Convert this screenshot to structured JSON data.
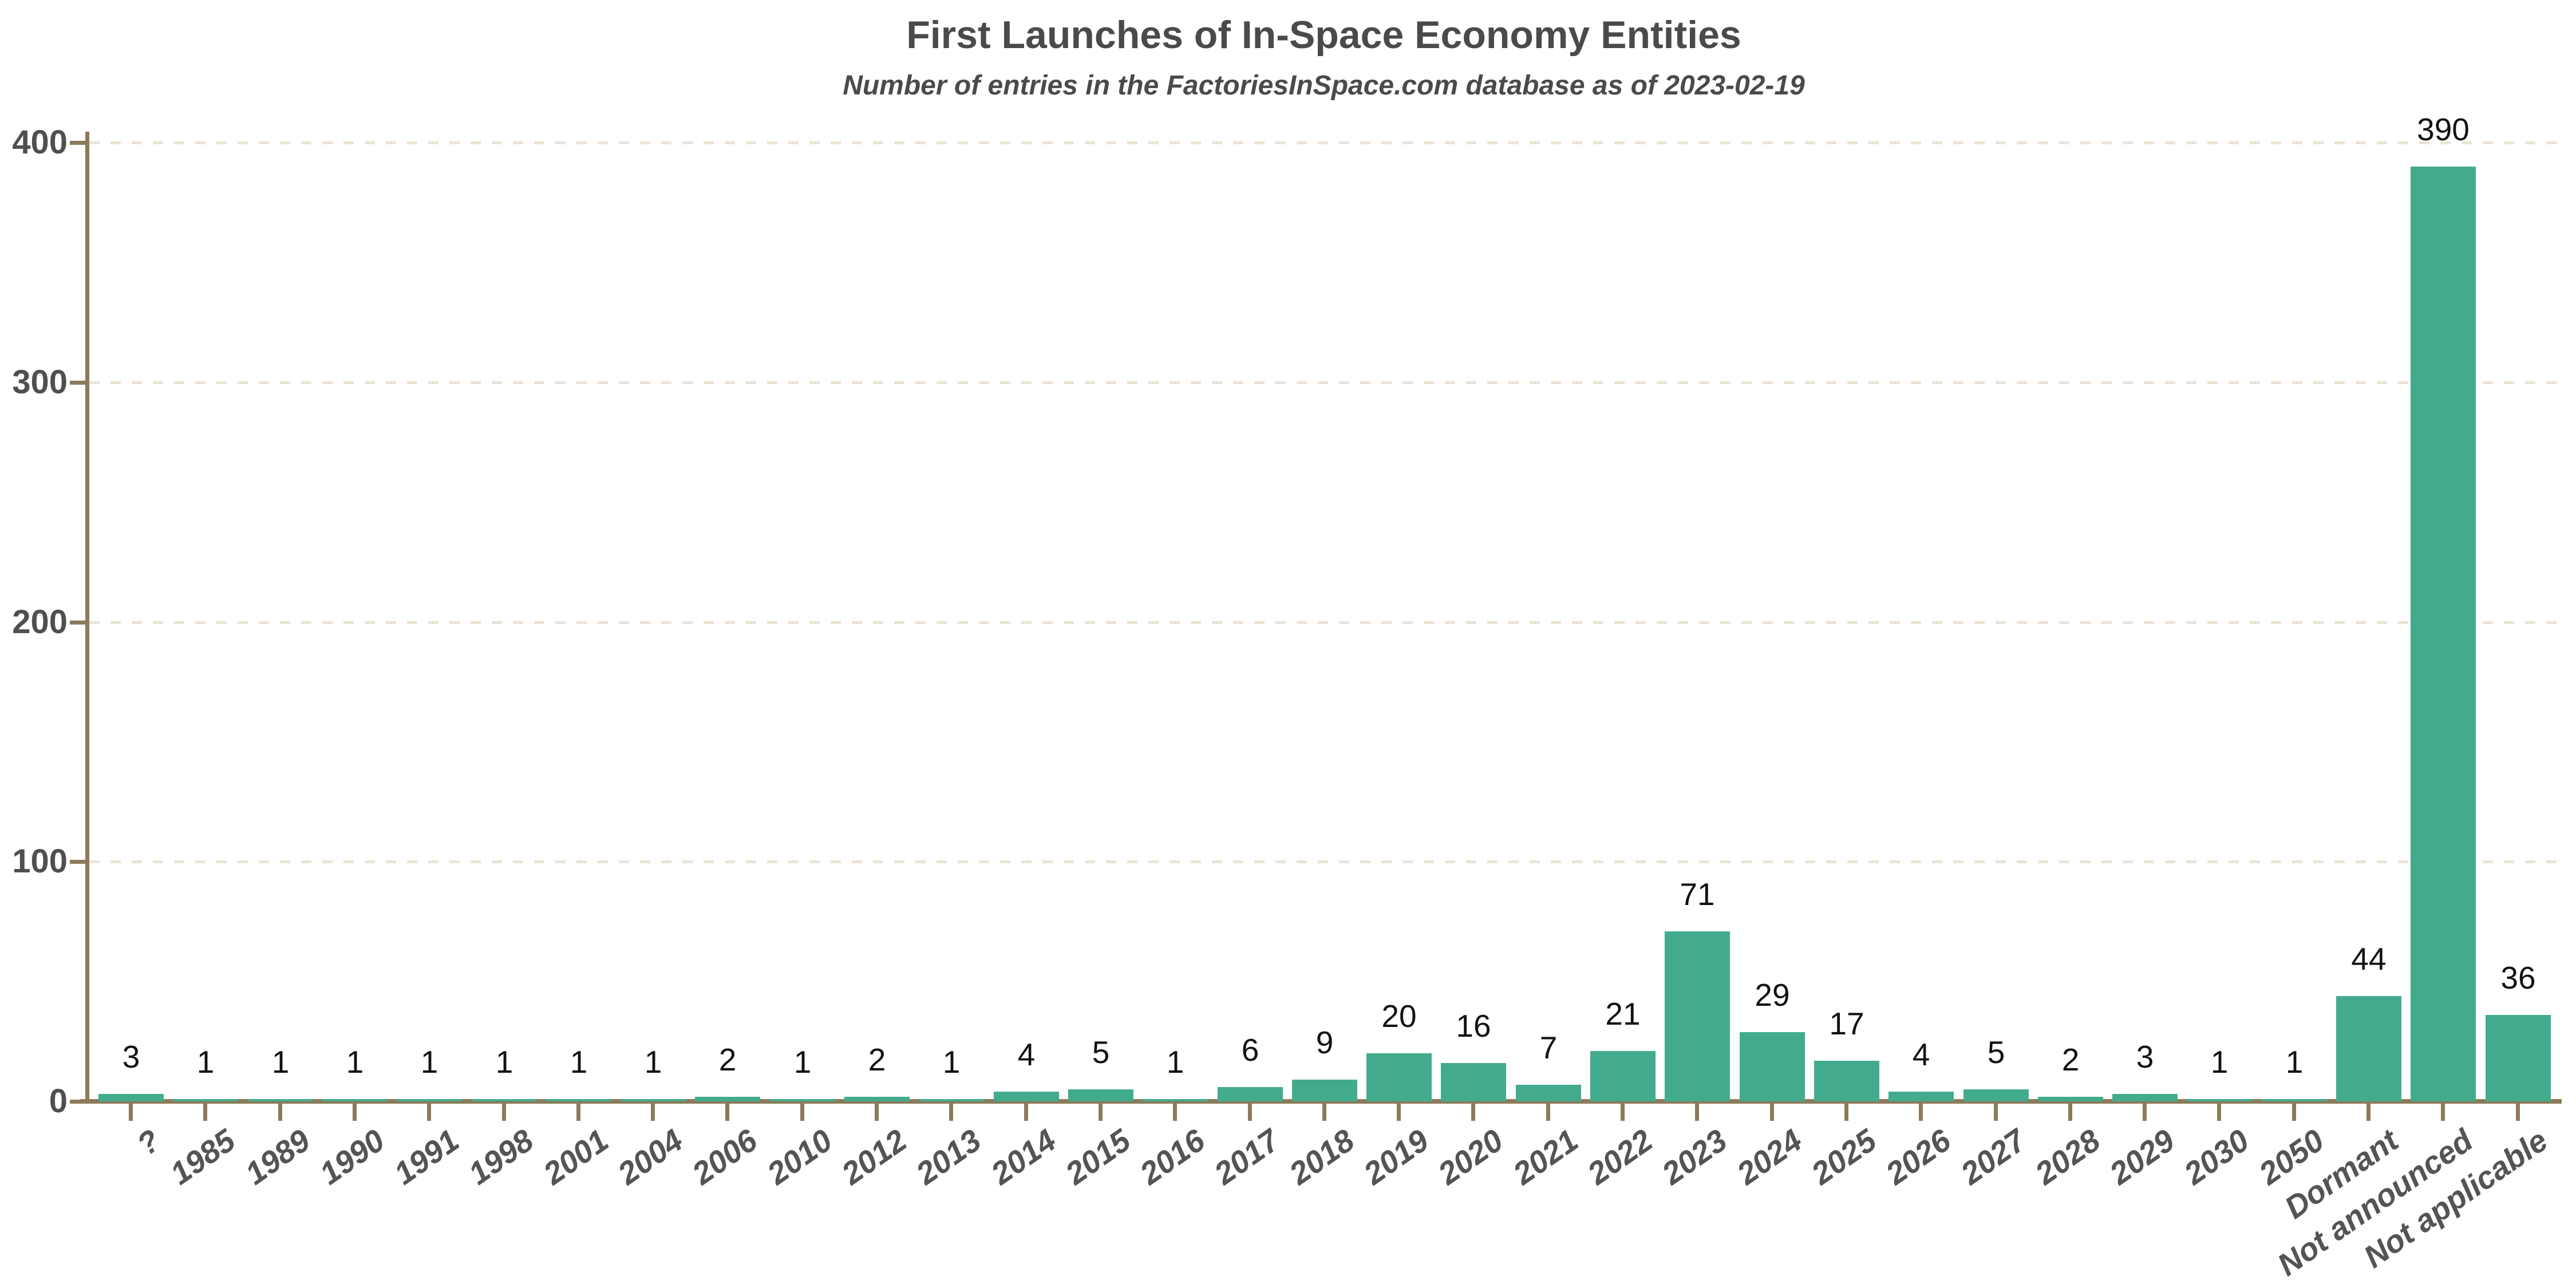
{
  "chart_data": {
    "type": "bar",
    "title": "First Launches of In-Space Economy Entities",
    "subtitle": "Number of entries in the FactoriesInSpace.com database as of 2023-02-19",
    "categories": [
      "?",
      "1985",
      "1989",
      "1990",
      "1991",
      "1998",
      "2001",
      "2004",
      "2006",
      "2010",
      "2012",
      "2013",
      "2014",
      "2015",
      "2016",
      "2017",
      "2018",
      "2019",
      "2020",
      "2021",
      "2022",
      "2023",
      "2024",
      "2025",
      "2026",
      "2027",
      "2028",
      "2029",
      "2030",
      "2050",
      "Dormant",
      "Not announced",
      "Not applicable"
    ],
    "values": [
      3,
      1,
      1,
      1,
      1,
      1,
      1,
      1,
      2,
      1,
      2,
      1,
      4,
      5,
      1,
      6,
      9,
      20,
      16,
      7,
      21,
      71,
      29,
      17,
      4,
      5,
      2,
      3,
      1,
      1,
      44,
      390,
      36
    ],
    "value_labels_shown": true,
    "xlabel": "",
    "ylabel": "",
    "ylim": [
      0,
      400
    ],
    "yticks": [
      0,
      100,
      200,
      300,
      400
    ],
    "grid": "horizontal-dashed",
    "legend": "none",
    "colors": {
      "bar": "#43ab8d",
      "axis": "#8c7a5a",
      "grid": "#ece3d6",
      "title": "#4a4a4a",
      "tick_labels": "#545454",
      "value_labels": "#111111",
      "background": "#ffffff"
    }
  }
}
